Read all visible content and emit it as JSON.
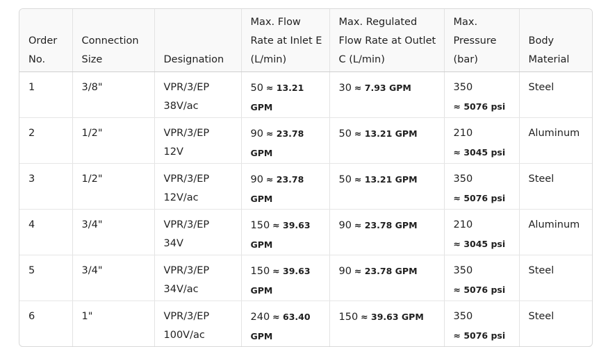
{
  "table": {
    "headers": [
      "Order No.",
      "Connection Size",
      "Designation",
      "Max. Flow Rate at Inlet E (L/min)",
      "Max. Regulated Flow Rate at Outlet C (L/min)",
      "Max. Pressure (bar)",
      "Body Material"
    ],
    "rows": [
      [
        "1",
        "3/8\"",
        "VPR/3/EP 38V/ac",
        {
          "value": "50",
          "approx": "≈ 13.21 GPM"
        },
        {
          "value": "30",
          "approx": "≈ 7.93 GPM"
        },
        {
          "value": "350",
          "approx": "≈ 5076 psi"
        },
        "Steel"
      ],
      [
        "2",
        "1/2\"",
        "VPR/3/EP 12V",
        {
          "value": "90",
          "approx": "≈ 23.78 GPM"
        },
        {
          "value": "50",
          "approx": "≈ 13.21 GPM"
        },
        {
          "value": "210",
          "approx": "≈ 3045 psi"
        },
        "Aluminum"
      ],
      [
        "3",
        "1/2\"",
        "VPR/3/EP 12V/ac",
        {
          "value": "90",
          "approx": "≈ 23.78 GPM"
        },
        {
          "value": "50",
          "approx": "≈ 13.21 GPM"
        },
        {
          "value": "350",
          "approx": "≈ 5076 psi"
        },
        "Steel"
      ],
      [
        "4",
        "3/4\"",
        "VPR/3/EP 34V",
        {
          "value": "150",
          "approx": "≈ 39.63 GPM"
        },
        {
          "value": "90",
          "approx": "≈ 23.78 GPM"
        },
        {
          "value": "210",
          "approx": "≈ 3045 psi"
        },
        "Aluminum"
      ],
      [
        "5",
        "3/4\"",
        "VPR/3/EP 34V/ac",
        {
          "value": "150",
          "approx": "≈ 39.63 GPM"
        },
        {
          "value": "90",
          "approx": "≈ 23.78 GPM"
        },
        {
          "value": "350",
          "approx": "≈ 5076 psi"
        },
        "Steel"
      ],
      [
        "6",
        "1\"",
        "VPR/3/EP 100V/ac",
        {
          "value": "240",
          "approx": "≈ 63.40 GPM"
        },
        {
          "value": "150",
          "approx": "≈ 39.63 GPM"
        },
        {
          "value": "350",
          "approx": "≈ 5076 psi"
        },
        "Steel"
      ]
    ]
  }
}
